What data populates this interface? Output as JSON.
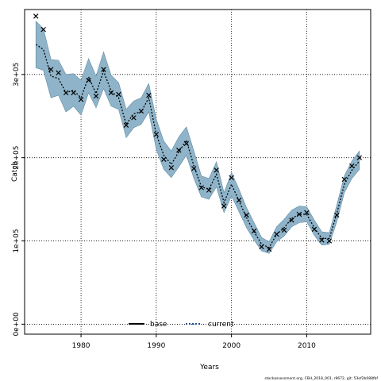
{
  "chart_data": {
    "type": "line",
    "xlabel": "Years",
    "ylabel": "Catch",
    "xlim": [
      1972.5,
      2018.5
    ],
    "ylim": [
      -12000,
      378000
    ],
    "x_ticks": [
      1980,
      1990,
      2000,
      2010
    ],
    "x_tick_labels": [
      "1980",
      "1990",
      "2000",
      "2010"
    ],
    "y_ticks": [
      0,
      100000,
      200000,
      300000
    ],
    "y_tick_labels": [
      "0e+00",
      "1e+05",
      "2e+05",
      "3e+05"
    ],
    "grid": true,
    "legend_position": "bottom-center",
    "legend": [
      {
        "label": "base",
        "style": "solid",
        "color": "#000000"
      },
      {
        "label": "current",
        "style": "dotted",
        "color": "#1f4e8c"
      }
    ],
    "footnote": "stockassessment.org, CBH_2018_001, r9672, git: 53ef2b088fbf",
    "colors": {
      "band": "#8fb4ca",
      "band_edge": "#5f8aa3",
      "observed": "#000000",
      "current": "#000000"
    },
    "years": [
      1974,
      1975,
      1976,
      1977,
      1978,
      1979,
      1980,
      1981,
      1982,
      1983,
      1984,
      1985,
      1986,
      1987,
      1988,
      1989,
      1990,
      1991,
      1992,
      1993,
      1994,
      1995,
      1996,
      1997,
      1998,
      1999,
      2000,
      2001,
      2002,
      2003,
      2004,
      2005,
      2006,
      2007,
      2008,
      2009,
      2010,
      2011,
      2012,
      2013,
      2014,
      2015,
      2016,
      2017
    ],
    "series": [
      {
        "name": "current",
        "kind": "fit",
        "values": [
          336000,
          330000,
          298000,
          295000,
          278000,
          281000,
          272000,
          297000,
          277000,
          304000,
          280000,
          272000,
          240000,
          253000,
          255000,
          272000,
          228000,
          203000,
          192000,
          207000,
          221000,
          190000,
          165000,
          162000,
          180000,
          146000,
          168000,
          148000,
          128000,
          111000,
          96000,
          92000,
          108000,
          116000,
          127000,
          132000,
          132000,
          116000,
          103000,
          103000,
          133000,
          168000,
          185000,
          196000
        ],
        "lower": [
          308000,
          305000,
          272000,
          275000,
          255000,
          262000,
          251000,
          278000,
          260000,
          283000,
          262000,
          258000,
          224000,
          236000,
          240000,
          255000,
          210000,
          186000,
          176000,
          189000,
          203000,
          175000,
          153000,
          150000,
          165000,
          134000,
          154000,
          135000,
          116000,
          101000,
          88000,
          85000,
          99000,
          106000,
          117000,
          122000,
          123000,
          107000,
          95000,
          96000,
          123000,
          158000,
          175000,
          186000
        ],
        "upper": [
          364000,
          355000,
          318000,
          317000,
          300000,
          301000,
          293000,
          319000,
          298000,
          327000,
          299000,
          290000,
          258000,
          268000,
          272000,
          289000,
          246000,
          220000,
          208000,
          225000,
          237000,
          208000,
          178000,
          175000,
          195000,
          158000,
          182000,
          162000,
          140000,
          122000,
          104000,
          99000,
          117000,
          126000,
          137000,
          142000,
          141000,
          125000,
          111000,
          110000,
          143000,
          178000,
          196000,
          208000
        ]
      },
      {
        "name": "observed",
        "kind": "points",
        "values": [
          370000,
          354000,
          306000,
          302000,
          278000,
          278000,
          270000,
          293000,
          274000,
          306000,
          278000,
          276000,
          239000,
          248000,
          256000,
          275000,
          228000,
          198000,
          188000,
          209000,
          217000,
          187000,
          164000,
          161000,
          185000,
          142000,
          176000,
          149000,
          131000,
          112000,
          93000,
          90000,
          108000,
          113000,
          125000,
          132000,
          134000,
          114000,
          101000,
          100000,
          131000,
          174000,
          190000,
          200000
        ]
      }
    ]
  }
}
